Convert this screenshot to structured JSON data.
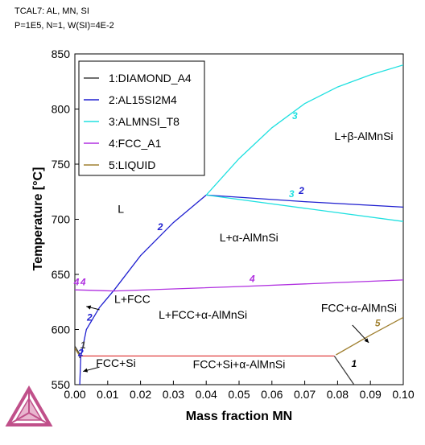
{
  "header": {
    "line1": "TCAL7: AL, MN, SI",
    "line2": "P=1E5, N=1, W(SI)=4E-2"
  },
  "chart_data": {
    "type": "line",
    "xlabel": "Mass fraction MN",
    "ylabel": "Temperature [°C]",
    "xlim": [
      0,
      0.1
    ],
    "ylim": [
      550,
      850
    ],
    "xticks": [
      "0.00",
      "0.01",
      "0.02",
      "0.03",
      "0.04",
      "0.05",
      "0.06",
      "0.07",
      "0.08",
      "0.09",
      "0.10"
    ],
    "yticks": [
      "550",
      "600",
      "650",
      "700",
      "750",
      "800",
      "850"
    ],
    "legend_position": "top-left",
    "legend": [
      {
        "label": "1:DIAMOND_A4",
        "color": "#404040"
      },
      {
        "label": "2:AL15SI2M4",
        "color": "#2020d0"
      },
      {
        "label": "3:ALMNSI_T8",
        "color": "#20e0e0"
      },
      {
        "label": "4:FCC_A1",
        "color": "#b030e0"
      },
      {
        "label": "5:LIQUID",
        "color": "#a08030"
      }
    ],
    "series": [
      {
        "name": "1:DIAMOND_A4",
        "color": "#404040",
        "segments": [
          [
            [
              0.0,
              585
            ],
            [
              0.0014,
              578
            ],
            [
              0.0015,
              574
            ]
          ],
          [
            [
              0.079,
              576
            ],
            [
              0.085,
              550
            ]
          ]
        ]
      },
      {
        "name": "2:AL15SI2M4",
        "color": "#2020d0",
        "segments": [
          [
            [
              0.0015,
              550
            ],
            [
              0.0018,
              575
            ],
            [
              0.0035,
              600
            ],
            [
              0.0075,
              620
            ],
            [
              0.012,
              636
            ],
            [
              0.02,
              667
            ],
            [
              0.03,
              697
            ],
            [
              0.04,
              722
            ]
          ],
          [
            [
              0.04,
              722
            ],
            [
              0.07,
              716
            ],
            [
              0.1,
              711
            ]
          ]
        ]
      },
      {
        "name": "3:ALMNSI_T8",
        "color": "#20e0e0",
        "segments": [
          [
            [
              0.04,
              722
            ],
            [
              0.05,
              755
            ],
            [
              0.06,
              783
            ],
            [
              0.07,
              805
            ],
            [
              0.08,
              820
            ],
            [
              0.09,
              831
            ],
            [
              0.1,
              840
            ]
          ],
          [
            [
              0.04,
              722
            ],
            [
              0.07,
              710
            ],
            [
              0.1,
              698
            ]
          ]
        ]
      },
      {
        "name": "4:FCC_A1",
        "color": "#b030e0",
        "segments": [
          [
            [
              0.0,
              636
            ],
            [
              0.012,
              635
            ],
            [
              0.05,
              639
            ],
            [
              0.1,
              645
            ]
          ]
        ]
      },
      {
        "name": "5:LIQUID",
        "color": "#a08030",
        "segments": [
          [
            [
              0.0,
              583
            ],
            [
              0.0015,
              576
            ]
          ],
          [
            [
              0.0795,
              577
            ],
            [
              0.09,
              595
            ],
            [
              0.1,
              611
            ]
          ]
        ]
      },
      {
        "name": "",
        "color": "#e04040",
        "segments": [
          [
            [
              0.0015,
              576
            ],
            [
              0.079,
              576
            ]
          ]
        ]
      }
    ],
    "curve_labels": [
      {
        "text": "1",
        "x": 0.0025,
        "y": 583,
        "color": "#404040"
      },
      {
        "text": "2",
        "x": 0.0018,
        "y": 576,
        "color": "#2020d0"
      },
      {
        "text": "2",
        "x": 0.0045,
        "y": 608,
        "color": "#2020d0"
      },
      {
        "text": "2",
        "x": 0.026,
        "y": 690,
        "color": "#2020d0"
      },
      {
        "text": "2",
        "x": 0.069,
        "y": 723,
        "color": "#2020d0"
      },
      {
        "text": "3",
        "x": 0.066,
        "y": 720,
        "color": "#20e0e0"
      },
      {
        "text": "3",
        "x": 0.067,
        "y": 791,
        "color": "#20e0e0"
      },
      {
        "text": "4",
        "x": 0.0005,
        "y": 640,
        "color": "#b030e0"
      },
      {
        "text": "4",
        "x": 0.0025,
        "y": 640,
        "color": "#b030e0"
      },
      {
        "text": "4",
        "x": 0.054,
        "y": 643,
        "color": "#b030e0"
      },
      {
        "text": "5",
        "x": 0.0922,
        "y": 603,
        "color": "#a08030"
      },
      {
        "text": "1",
        "x": 0.085,
        "y": 566,
        "color": "#000000"
      }
    ],
    "region_labels": [
      {
        "text": "L",
        "x": 0.014,
        "y": 706
      },
      {
        "text": "L+β-AlMnSi",
        "x": 0.088,
        "y": 772
      },
      {
        "text": "L+α-AlMnSi",
        "x": 0.053,
        "y": 680
      },
      {
        "text": "L+FCC",
        "x": 0.0175,
        "y": 624
      },
      {
        "text": "L+FCC+α-AlMnSi",
        "x": 0.039,
        "y": 610
      },
      {
        "text": "FCC+α-AlMnSi",
        "x": 0.0865,
        "y": 616
      },
      {
        "text": "FCC+Si",
        "x": 0.0125,
        "y": 566
      },
      {
        "text": "FCC+Si+α-AlMnSi",
        "x": 0.05,
        "y": 565
      }
    ],
    "arrows": [
      {
        "from": [
          0.0075,
          618
        ],
        "to": [
          0.0035,
          621
        ]
      },
      {
        "from": [
          0.0075,
          566
        ],
        "to": [
          0.0025,
          562
        ]
      },
      {
        "from": [
          0.0845,
          604
        ],
        "to": [
          0.0895,
          588
        ]
      }
    ]
  }
}
